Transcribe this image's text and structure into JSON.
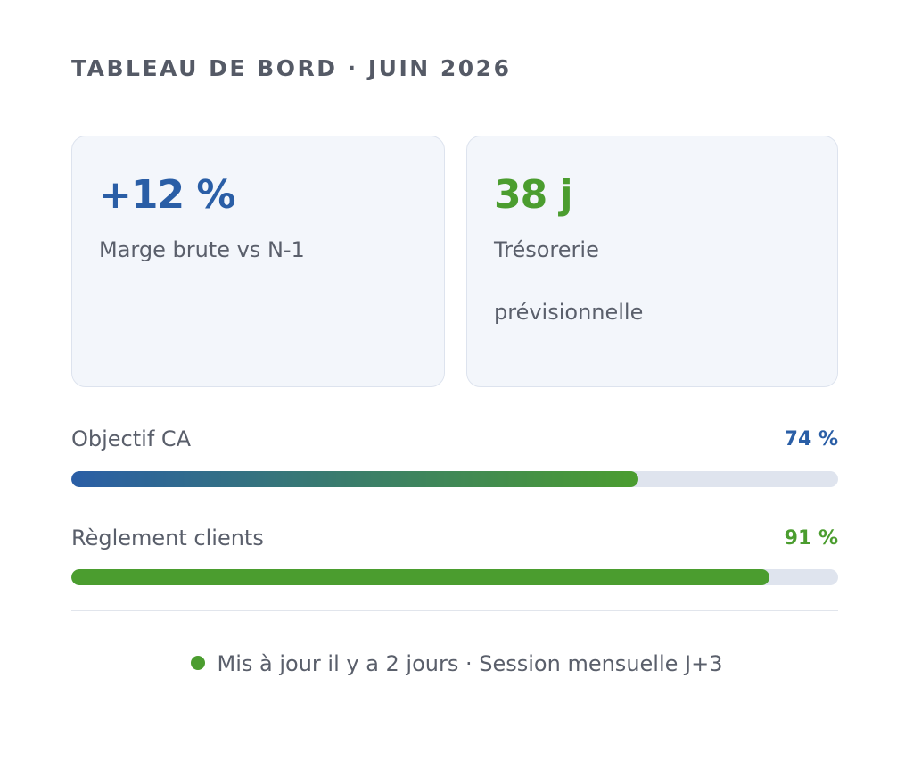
{
  "header": {
    "title": "TABLEAU DE BORD · JUIN 2026"
  },
  "kpis": [
    {
      "value": "+12 %",
      "label": "Marge brute vs N-1"
    },
    {
      "value": "38 j",
      "label": "Trésorerie prévisionnelle"
    }
  ],
  "progress": [
    {
      "label": "Objectif CA",
      "value": 74,
      "value_label": "74 %"
    },
    {
      "label": "Règlement clients",
      "value": 91,
      "value_label": "91 %"
    }
  ],
  "footer": {
    "text": "Mis à jour il y a 2 jours · Session mensuelle J+3"
  }
}
